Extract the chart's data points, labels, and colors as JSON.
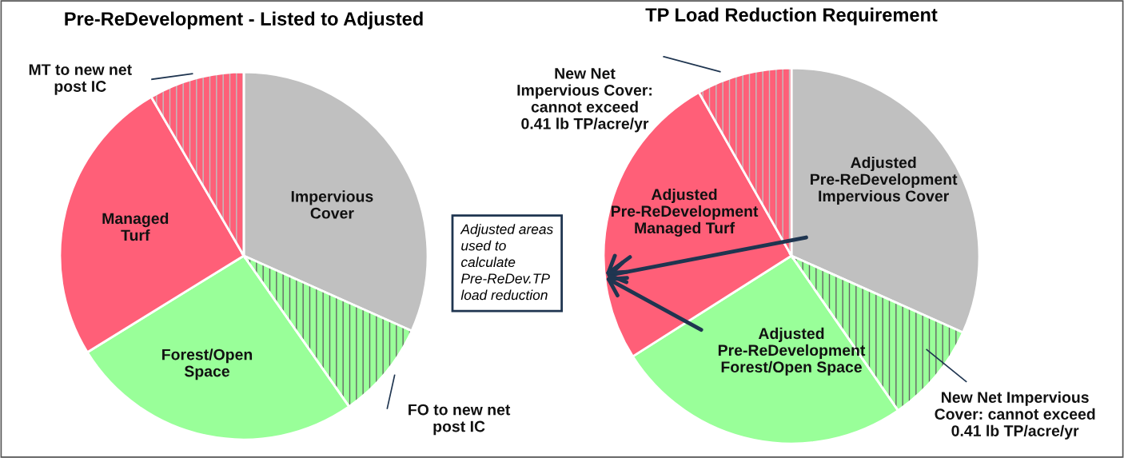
{
  "chart_data": [
    {
      "type": "pie",
      "title": "Pre-ReDevelopment - Listed to Adjusted",
      "categories": [
        "Impervious Cover",
        "FO to new net post IC",
        "Forest/Open Space",
        "Managed Turf",
        "MT to new net post IC"
      ],
      "values": [
        31.7,
        8.6,
        25.9,
        25.4,
        8.4
      ],
      "colors": [
        "#c0c0c0",
        "#99ff99",
        "#99ff99",
        "#ff5f78",
        "#ff5f78"
      ]
    },
    {
      "type": "pie",
      "title": "TP Load Reduction Requirement",
      "categories": [
        "Adjusted Pre-ReDevelopment Impervious Cover",
        "New Net Impervious Cover: cannot exceed 0.41 lb TP/acre/yr",
        "Adjusted Pre-ReDevelopment Forest/Open Space",
        "Adjusted Pre-ReDevelopment Managed Turf",
        "New Net Impervious Cover: cannot exceed 0.41 lb TP/acre/yr"
      ],
      "values": [
        31.7,
        8.7,
        25.6,
        25.8,
        8.2
      ],
      "colors": [
        "#c0c0c0",
        "#99ff99",
        "#99ff99",
        "#ff5f78",
        "#ff5f78"
      ],
      "annotations": [
        "Adjusted areas used to calculate Pre-ReDev.TP load reduction"
      ]
    }
  ]
}
